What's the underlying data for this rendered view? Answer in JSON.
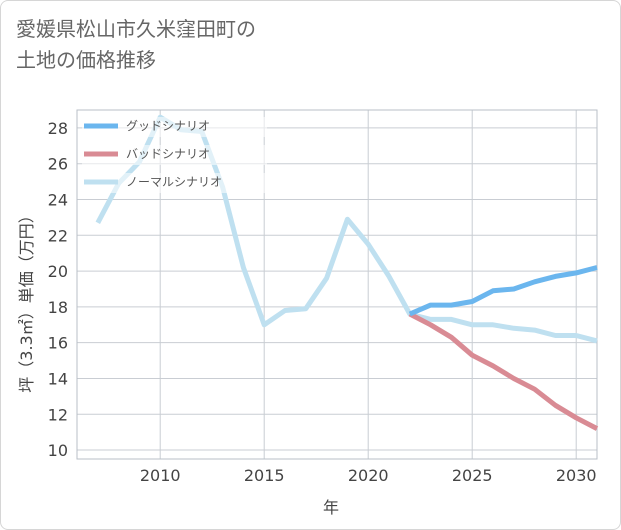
{
  "title_line1": "愛媛県松山市久米窪田町の",
  "title_line2": "土地の価格推移",
  "chart_data": {
    "type": "line",
    "xlabel": "年",
    "ylabel": "坪（3.3㎡）単価（万円）",
    "xlim": [
      2006,
      2031
    ],
    "ylim": [
      9.5,
      29
    ],
    "xticks": [
      2010,
      2015,
      2020,
      2025,
      2030
    ],
    "yticks": [
      10,
      12,
      14,
      16,
      18,
      20,
      22,
      24,
      26,
      28
    ],
    "grid": true,
    "legend_position": "top-left",
    "series": [
      {
        "name": "グッドシナリオ",
        "color": "#6bb6ee",
        "x": [
          2022,
          2023,
          2024,
          2025,
          2026,
          2027,
          2028,
          2029,
          2030,
          2031
        ],
        "y": [
          17.6,
          18.1,
          18.1,
          18.3,
          18.9,
          19.0,
          19.4,
          19.7,
          19.9,
          20.2
        ]
      },
      {
        "name": "バッドシナリオ",
        "color": "#d98b94",
        "x": [
          2022,
          2023,
          2024,
          2025,
          2026,
          2027,
          2028,
          2029,
          2030,
          2031
        ],
        "y": [
          17.6,
          17.0,
          16.3,
          15.3,
          14.7,
          14.0,
          13.4,
          12.5,
          11.8,
          11.2
        ]
      },
      {
        "name": "ノーマルシナリオ",
        "color": "#bfe0f0",
        "x": [
          2007,
          2008,
          2009,
          2010,
          2011,
          2012,
          2013,
          2014,
          2015,
          2016,
          2017,
          2018,
          2019,
          2020,
          2021,
          2022,
          2023,
          2024,
          2025,
          2026,
          2027,
          2028,
          2029,
          2030,
          2031
        ],
        "y": [
          22.7,
          24.9,
          26.1,
          28.6,
          27.9,
          27.8,
          24.7,
          20.2,
          17.0,
          17.8,
          17.9,
          19.6,
          22.9,
          21.5,
          19.7,
          17.6,
          17.3,
          17.3,
          17.0,
          17.0,
          16.8,
          16.7,
          16.4,
          16.4,
          16.1
        ]
      }
    ]
  }
}
